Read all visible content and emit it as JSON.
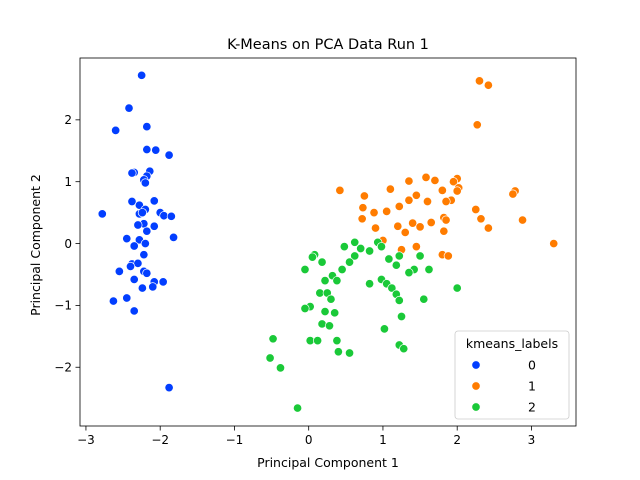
{
  "chart_data": {
    "type": "scatter",
    "title": "K-Means on PCA Data Run 1",
    "xlabel": "Principal Component 1",
    "ylabel": "Principal Component 2",
    "xlim": [
      -3.08,
      3.6
    ],
    "ylim": [
      -2.95,
      3.0
    ],
    "xticks": [
      -3,
      -2,
      -1,
      0,
      1,
      2,
      3
    ],
    "yticks": [
      -2,
      -1,
      0,
      1,
      2
    ],
    "grid": false,
    "legend": {
      "title": "kmeans_labels",
      "position": "lower-right"
    },
    "series": [
      {
        "name": "0",
        "color": "#023eff",
        "points": [
          [
            -2.25,
            2.72
          ],
          [
            -2.42,
            2.19
          ],
          [
            -2.6,
            1.83
          ],
          [
            -2.18,
            1.89
          ],
          [
            -2.18,
            1.52
          ],
          [
            -2.06,
            1.51
          ],
          [
            -1.88,
            1.43
          ],
          [
            -2.35,
            1.15
          ],
          [
            -2.38,
            1.14
          ],
          [
            -2.14,
            1.17
          ],
          [
            -2.18,
            1.09
          ],
          [
            -2.22,
            1.03
          ],
          [
            -2.2,
            0.98
          ],
          [
            -2.08,
            0.69
          ],
          [
            -2.38,
            0.68
          ],
          [
            -2.28,
            0.62
          ],
          [
            -2.2,
            0.55
          ],
          [
            -2.28,
            0.48
          ],
          [
            -2.24,
            0.5
          ],
          [
            -2.0,
            0.5
          ],
          [
            -1.95,
            0.45
          ],
          [
            -1.85,
            0.44
          ],
          [
            -2.78,
            0.48
          ],
          [
            -2.22,
            0.32
          ],
          [
            -2.3,
            0.3
          ],
          [
            -2.08,
            0.28
          ],
          [
            -2.18,
            0.2
          ],
          [
            -2.45,
            0.08
          ],
          [
            -2.28,
            0.06
          ],
          [
            -1.82,
            0.1
          ],
          [
            -2.2,
            0.0
          ],
          [
            -2.35,
            -0.04
          ],
          [
            -2.22,
            -0.18
          ],
          [
            -2.38,
            -0.33
          ],
          [
            -2.3,
            -0.32
          ],
          [
            -2.4,
            -0.37
          ],
          [
            -2.55,
            -0.45
          ],
          [
            -2.22,
            -0.45
          ],
          [
            -2.18,
            -0.48
          ],
          [
            -2.35,
            -0.58
          ],
          [
            -2.08,
            -0.62
          ],
          [
            -1.96,
            -0.62
          ],
          [
            -2.1,
            -0.7
          ],
          [
            -2.24,
            -0.72
          ],
          [
            -2.45,
            -0.88
          ],
          [
            -2.63,
            -0.93
          ],
          [
            -2.35,
            -1.09
          ],
          [
            -1.88,
            -2.33
          ]
        ]
      },
      {
        "name": "1",
        "color": "#ff7c00",
        "points": [
          [
            2.3,
            2.63
          ],
          [
            2.42,
            2.56
          ],
          [
            2.27,
            1.92
          ],
          [
            1.58,
            1.07
          ],
          [
            2.0,
            1.05
          ],
          [
            1.95,
            1.0
          ],
          [
            1.35,
            1.01
          ],
          [
            1.7,
            1.02
          ],
          [
            2.02,
            0.9
          ],
          [
            2.0,
            0.85
          ],
          [
            1.1,
            0.88
          ],
          [
            0.42,
            0.86
          ],
          [
            1.8,
            0.86
          ],
          [
            1.45,
            0.78
          ],
          [
            0.75,
            0.77
          ],
          [
            2.78,
            0.85
          ],
          [
            2.75,
            0.8
          ],
          [
            1.92,
            0.7
          ],
          [
            1.35,
            0.7
          ],
          [
            1.6,
            0.68
          ],
          [
            1.85,
            0.68
          ],
          [
            1.22,
            0.6
          ],
          [
            0.73,
            0.58
          ],
          [
            0.88,
            0.5
          ],
          [
            1.05,
            0.52
          ],
          [
            2.25,
            0.55
          ],
          [
            1.82,
            0.42
          ],
          [
            1.85,
            0.38
          ],
          [
            2.32,
            0.4
          ],
          [
            2.88,
            0.38
          ],
          [
            0.72,
            0.4
          ],
          [
            1.65,
            0.34
          ],
          [
            1.4,
            0.33
          ],
          [
            1.5,
            0.27
          ],
          [
            1.2,
            0.28
          ],
          [
            0.9,
            0.25
          ],
          [
            2.42,
            0.25
          ],
          [
            1.82,
            0.2
          ],
          [
            1.3,
            0.18
          ],
          [
            1.0,
            0.05
          ],
          [
            3.3,
            0.0
          ],
          [
            1.45,
            -0.05
          ],
          [
            1.25,
            -0.1
          ],
          [
            1.8,
            -0.18
          ],
          [
            1.88,
            -0.2
          ]
        ]
      },
      {
        "name": "2",
        "color": "#1ac938",
        "points": [
          [
            0.62,
            0.02
          ],
          [
            0.93,
            0.02
          ],
          [
            0.48,
            -0.05
          ],
          [
            0.98,
            -0.05
          ],
          [
            0.7,
            -0.08
          ],
          [
            0.82,
            -0.12
          ],
          [
            0.08,
            -0.18
          ],
          [
            0.05,
            -0.22
          ],
          [
            0.62,
            -0.2
          ],
          [
            1.22,
            -0.2
          ],
          [
            1.5,
            -0.2
          ],
          [
            1.08,
            -0.25
          ],
          [
            0.18,
            -0.3
          ],
          [
            0.55,
            -0.3
          ],
          [
            1.18,
            -0.35
          ],
          [
            0.45,
            -0.42
          ],
          [
            1.42,
            -0.42
          ],
          [
            1.62,
            -0.42
          ],
          [
            -0.05,
            -0.42
          ],
          [
            1.35,
            -0.47
          ],
          [
            0.32,
            -0.52
          ],
          [
            0.98,
            -0.58
          ],
          [
            0.22,
            -0.6
          ],
          [
            0.38,
            -0.6
          ],
          [
            1.05,
            -0.65
          ],
          [
            0.82,
            -0.65
          ],
          [
            1.12,
            -0.72
          ],
          [
            2.0,
            -0.72
          ],
          [
            0.15,
            -0.8
          ],
          [
            0.25,
            -0.8
          ],
          [
            1.18,
            -0.82
          ],
          [
            0.3,
            -0.9
          ],
          [
            1.55,
            -0.9
          ],
          [
            1.22,
            -0.92
          ],
          [
            0.02,
            -1.02
          ],
          [
            -0.05,
            -1.05
          ],
          [
            0.22,
            -1.1
          ],
          [
            0.35,
            -1.12
          ],
          [
            1.25,
            -1.18
          ],
          [
            0.18,
            -1.3
          ],
          [
            0.28,
            -1.33
          ],
          [
            1.02,
            -1.38
          ],
          [
            -0.48,
            -1.54
          ],
          [
            0.02,
            -1.57
          ],
          [
            0.12,
            -1.57
          ],
          [
            0.38,
            -1.57
          ],
          [
            1.22,
            -1.64
          ],
          [
            1.28,
            -1.7
          ],
          [
            0.4,
            -1.75
          ],
          [
            0.55,
            -1.77
          ],
          [
            -0.52,
            -1.85
          ],
          [
            -0.38,
            -2.01
          ],
          [
            -0.15,
            -2.66
          ]
        ]
      }
    ]
  }
}
